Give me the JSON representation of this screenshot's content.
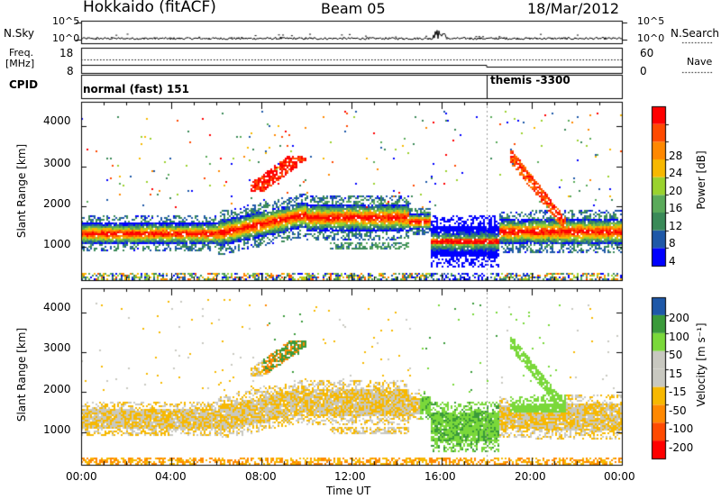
{
  "header": {
    "title": "Hokkaido (fitACF)",
    "beam": "Beam 05",
    "date": "18/Mar/2012"
  },
  "top_panels": {
    "nsky_label": "N.Sky",
    "nsearch_label": "N.Search",
    "tick_1e5": "10^5",
    "tick_1e0": "10^0",
    "freq_label_1": "Freq.",
    "freq_label_2": "[MHz]",
    "freq_ticks": [
      "18",
      "8"
    ],
    "nave_label": "Nave",
    "nave_ticks": [
      "60",
      "0"
    ],
    "cpid_label": "CPID",
    "cpid_segments": [
      {
        "label": "normal (fast) 151",
        "start_hour": 0
      },
      {
        "label": "themis -3300",
        "start_hour": 18
      }
    ]
  },
  "colors": {
    "power": [
      "#0000ff",
      "#1e58a8",
      "#3a8a58",
      "#5aaa5a",
      "#9ad22e",
      "#f7b800",
      "#ff8800",
      "#ff4a00",
      "#ff0000"
    ],
    "velocity": [
      "#ff0000",
      "#ff4a00",
      "#ff8800",
      "#f7b800",
      "#c8c8c0",
      "#c8c8c0",
      "#7ad83a",
      "#3a9a3a",
      "#1e58a8",
      "#0000aa"
    ]
  },
  "chart_data": [
    {
      "type": "heatmap",
      "name": "power",
      "ylabel": "Slant Range [km]",
      "yticks": [
        1000,
        2000,
        3000,
        4000
      ],
      "ylim": [
        180,
        4600
      ],
      "xlim_hours": [
        0,
        24
      ],
      "colorbar_label": "Power [dB]",
      "colorbar_ticks": [
        "4",
        "8",
        "12",
        "16",
        "20",
        "24",
        "28"
      ],
      "colorbar_range": [
        0,
        32
      ]
    },
    {
      "type": "heatmap",
      "name": "velocity",
      "ylabel": "Slant Range [km]",
      "yticks": [
        1000,
        2000,
        3000,
        4000
      ],
      "ylim": [
        180,
        4600
      ],
      "xlim_hours": [
        0,
        24
      ],
      "colorbar_label": "Velocity [m s⁻¹]",
      "colorbar_ticks": [
        "200",
        "100",
        "50",
        "15",
        "-15",
        "-50",
        "-100",
        "-200"
      ]
    }
  ],
  "xaxis": {
    "ticks": [
      "00:00",
      "04:00",
      "08:00",
      "12:00",
      "16:00",
      "20:00",
      "00:00"
    ],
    "label": "Time UT"
  }
}
